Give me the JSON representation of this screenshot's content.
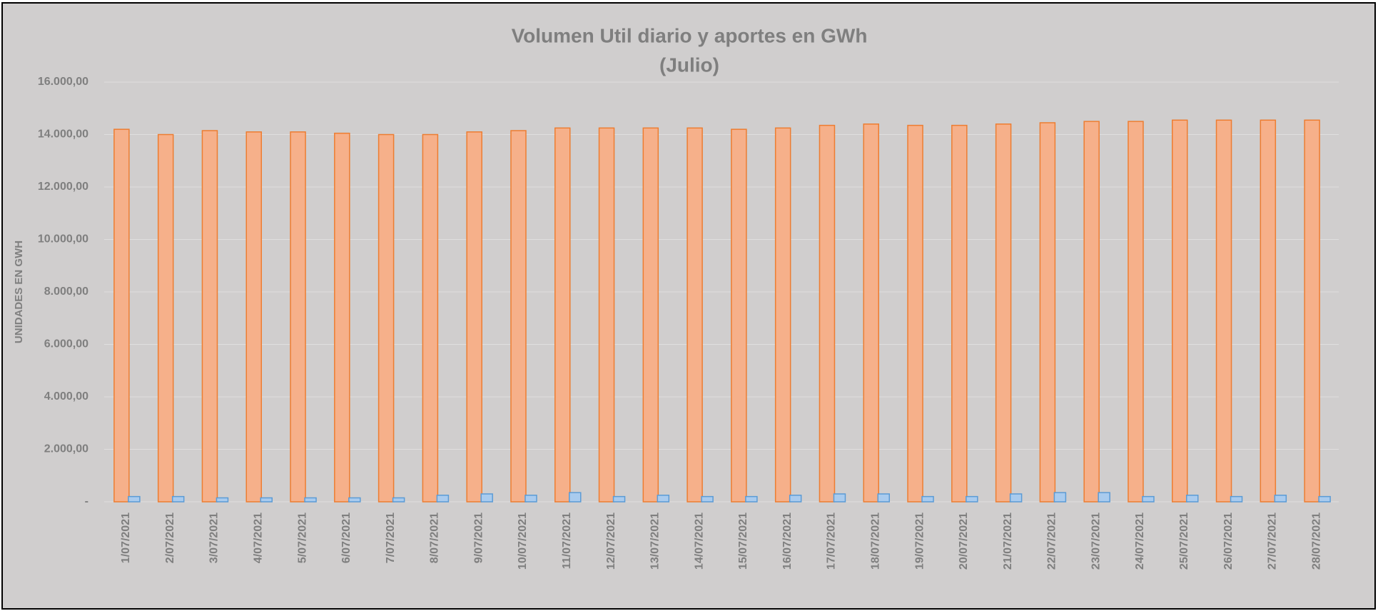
{
  "chart_data": {
    "type": "bar",
    "title": "Volumen Util diario y aportes en GWh",
    "subtitle": "(Julio)",
    "ylabel": "UNIDADES EN GWH",
    "categories": [
      "1/07/2021",
      "2/07/2021",
      "3/07/2021",
      "4/07/2021",
      "5/07/2021",
      "6/07/2021",
      "7/07/2021",
      "8/07/2021",
      "9/07/2021",
      "10/07/2021",
      "11/07/2021",
      "12/07/2021",
      "13/07/2021",
      "14/07/2021",
      "15/07/2021",
      "16/07/2021",
      "17/07/2021",
      "18/07/2021",
      "19/07/2021",
      "20/07/2021",
      "21/07/2021",
      "22/07/2021",
      "23/07/2021",
      "24/07/2021",
      "25/07/2021",
      "26/07/2021",
      "27/07/2021",
      "28/07/2021"
    ],
    "series": [
      {
        "color": "#f6b08a",
        "edgecolor": "#ed7d31",
        "values": [
          14200,
          14000,
          14150,
          14100,
          14100,
          14050,
          14000,
          14000,
          14100,
          14150,
          14250,
          14250,
          14250,
          14250,
          14200,
          14250,
          14350,
          14400,
          14350,
          14350,
          14400,
          14450,
          14500,
          14500,
          14550,
          14550,
          14550,
          14550
        ]
      },
      {
        "color": "#a9cbee",
        "edgecolor": "#5b9bd5",
        "values": [
          200,
          200,
          150,
          150,
          150,
          150,
          150,
          250,
          300,
          250,
          350,
          200,
          250,
          200,
          200,
          250,
          300,
          300,
          200,
          200,
          300,
          350,
          350,
          200,
          250,
          200,
          250,
          200
        ]
      }
    ],
    "ylim": [
      0,
      16000
    ],
    "yticks": [
      {
        "value": 0,
        "label": "-"
      },
      {
        "value": 2000,
        "label": "2.000,00"
      },
      {
        "value": 4000,
        "label": "4.000,00"
      },
      {
        "value": 6000,
        "label": "6.000,00"
      },
      {
        "value": 8000,
        "label": "8.000,00"
      },
      {
        "value": 10000,
        "label": "10.000,00"
      },
      {
        "value": 12000,
        "label": "12.000,00"
      },
      {
        "value": 14000,
        "label": "14.000,00"
      },
      {
        "value": 16000,
        "label": "16.000,00"
      }
    ],
    "grid": true
  }
}
